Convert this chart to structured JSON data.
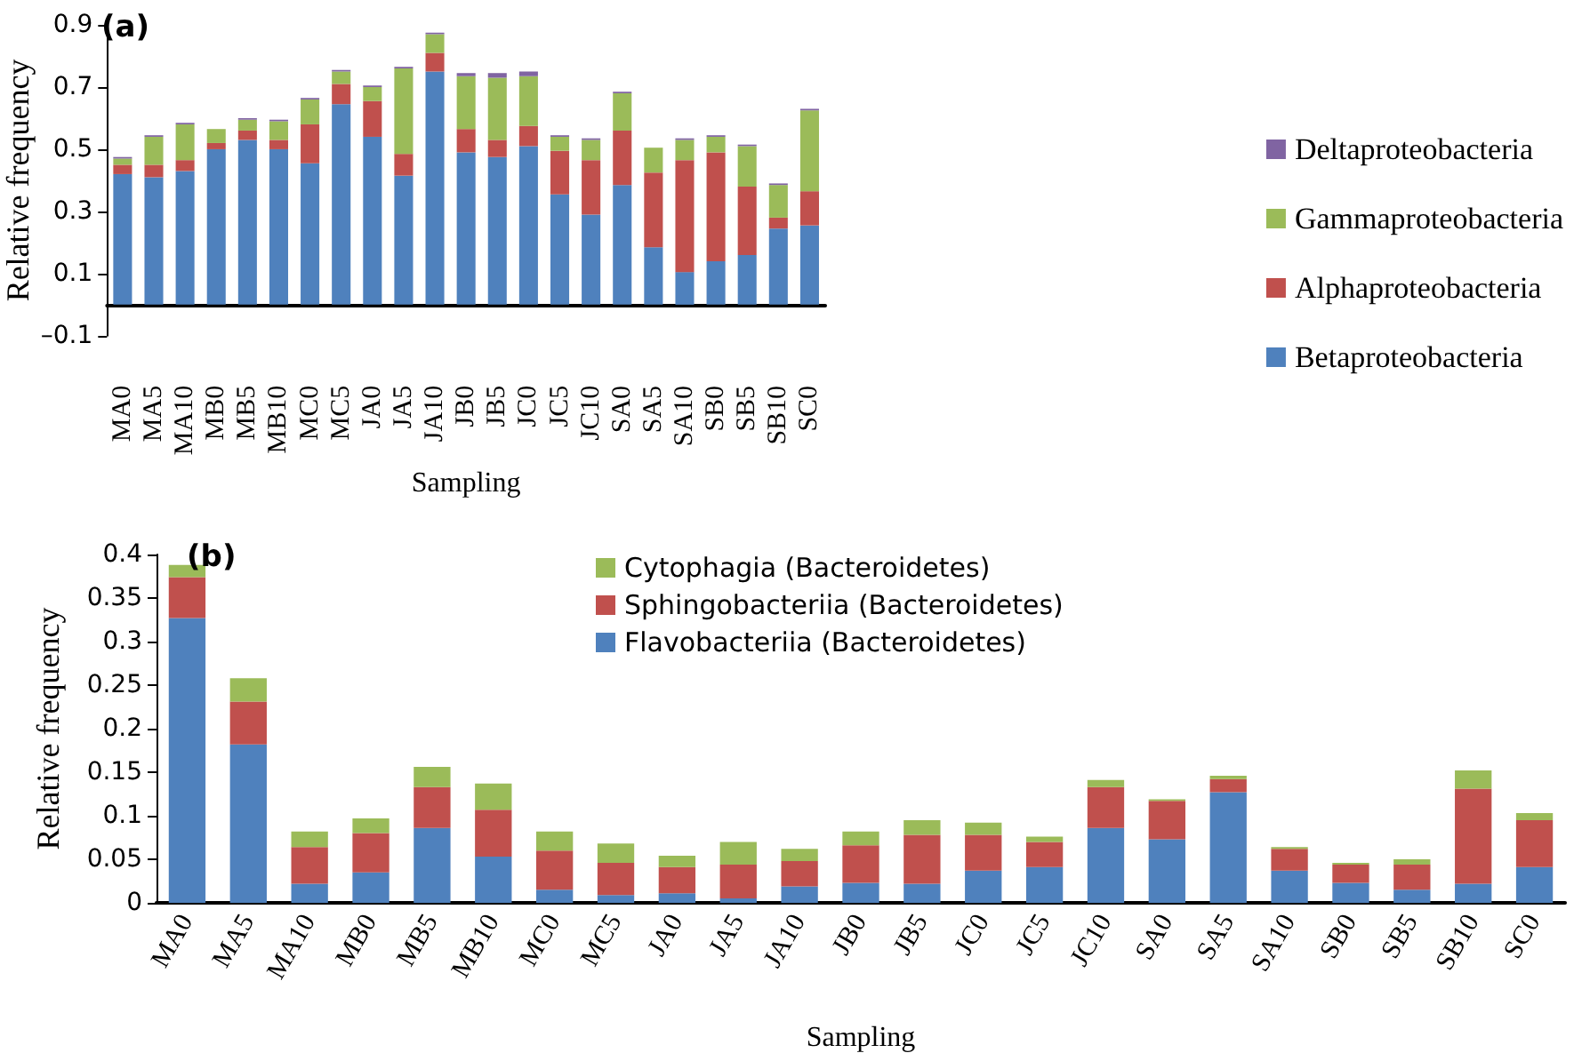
{
  "chart_data": [
    {
      "type": "bar",
      "title": "(a)",
      "xlabel": "Sampling",
      "ylabel": "Relative frequency",
      "stacked": true,
      "legend": "right",
      "grid": false,
      "categories": [
        "MA0",
        "MA5",
        "MA10",
        "MB0",
        "MB5",
        "MB10",
        "MC0",
        "MC5",
        "JA0",
        "JA5",
        "JA10",
        "JB0",
        "JB5",
        "JC0",
        "JC5",
        "JC10",
        "SA0",
        "SA5",
        "SA10",
        "SB0",
        "SB5",
        "SB10",
        "SC0"
      ],
      "ylim": [
        -0.1,
        0.9
      ],
      "yticks": [
        {
          "value": -0.1,
          "label": "–0.1"
        },
        0.1,
        0.3,
        0.5,
        0.7,
        0.9
      ],
      "series": [
        {
          "name": "Betaproteobacteria",
          "color": "#4f81bd",
          "values": [
            0.42,
            0.41,
            0.43,
            0.5,
            0.53,
            0.5,
            0.455,
            0.645,
            0.54,
            0.415,
            0.75,
            0.49,
            0.475,
            0.51,
            0.355,
            0.29,
            0.385,
            0.185,
            0.105,
            0.14,
            0.16,
            0.245,
            0.255
          ]
        },
        {
          "name": "Alphaproteobacteria",
          "color": "#c0504d",
          "values": [
            0.03,
            0.04,
            0.035,
            0.02,
            0.03,
            0.03,
            0.125,
            0.065,
            0.115,
            0.07,
            0.06,
            0.075,
            0.055,
            0.065,
            0.14,
            0.175,
            0.175,
            0.24,
            0.36,
            0.35,
            0.22,
            0.035,
            0.11
          ]
        },
        {
          "name": "Gammaproteobacteria",
          "color": "#9bbb59",
          "values": [
            0.02,
            0.09,
            0.115,
            0.045,
            0.035,
            0.06,
            0.08,
            0.04,
            0.045,
            0.275,
            0.06,
            0.17,
            0.2,
            0.16,
            0.045,
            0.065,
            0.12,
            0.08,
            0.065,
            0.05,
            0.13,
            0.105,
            0.26
          ]
        },
        {
          "name": "Deltaproteobacteria",
          "color": "#8064a2",
          "values": [
            0.005,
            0.005,
            0.005,
            0,
            0.005,
            0.005,
            0.005,
            0.005,
            0.005,
            0.005,
            0.005,
            0.01,
            0.015,
            0.015,
            0.005,
            0.005,
            0.005,
            0,
            0.005,
            0.005,
            0.005,
            0.005,
            0.005
          ]
        }
      ]
    },
    {
      "type": "bar",
      "title": "(b)",
      "xlabel": "Sampling",
      "ylabel": "Relative frequency",
      "stacked": true,
      "legend": "top",
      "grid": false,
      "categories": [
        "MA0",
        "MA5",
        "MA10",
        "MB0",
        "MB5",
        "MB10",
        "MC0",
        "MC5",
        "JA0",
        "JA5",
        "JA10",
        "JB0",
        "JB5",
        "JC0",
        "JC5",
        "JC10",
        "SA0",
        "SA5",
        "SA10",
        "SB0",
        "SB5",
        "SB10",
        "SC0"
      ],
      "ylim": [
        0,
        0.4
      ],
      "yticks": [
        0,
        0.05,
        0.1,
        0.15,
        0.2,
        0.25,
        0.3,
        0.35,
        0.4
      ],
      "series": [
        {
          "name": "Flavobacteriia (Bacteroidetes)",
          "color": "#4f81bd",
          "values": [
            0.327,
            0.182,
            0.022,
            0.035,
            0.086,
            0.053,
            0.015,
            0.009,
            0.011,
            0.005,
            0.019,
            0.023,
            0.022,
            0.037,
            0.041,
            0.086,
            0.073,
            0.127,
            0.037,
            0.023,
            0.015,
            0.022,
            0.041
          ]
        },
        {
          "name": "Sphingobacteriia (Bacteroidetes)",
          "color": "#c0504d",
          "values": [
            0.047,
            0.049,
            0.042,
            0.045,
            0.047,
            0.054,
            0.045,
            0.037,
            0.03,
            0.039,
            0.029,
            0.043,
            0.056,
            0.041,
            0.029,
            0.047,
            0.044,
            0.015,
            0.025,
            0.021,
            0.029,
            0.109,
            0.054
          ]
        },
        {
          "name": "Cytophagia (Bacteroidetes)",
          "color": "#9bbb59",
          "values": [
            0.014,
            0.027,
            0.018,
            0.017,
            0.023,
            0.03,
            0.022,
            0.022,
            0.013,
            0.026,
            0.014,
            0.016,
            0.017,
            0.014,
            0.006,
            0.008,
            0.002,
            0.004,
            0.002,
            0.002,
            0.006,
            0.021,
            0.008
          ]
        }
      ]
    }
  ]
}
